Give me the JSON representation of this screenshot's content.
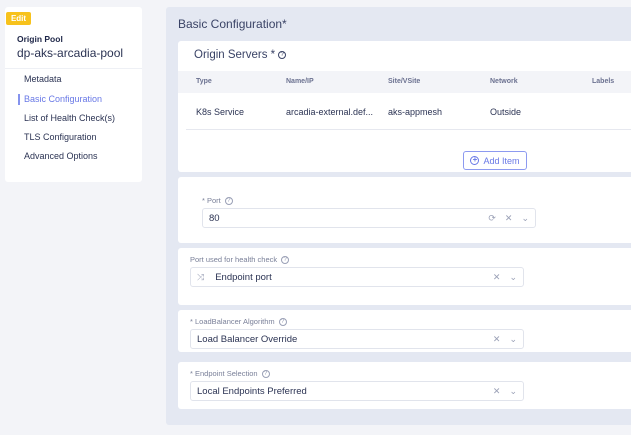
{
  "sidebar": {
    "badge": "Edit",
    "object_type": "Origin Pool",
    "object_name": "dp-aks-arcadia-pool",
    "items": [
      {
        "label": "Metadata"
      },
      {
        "label": "Basic Configuration",
        "active": true
      },
      {
        "label": "List of Health Check(s)"
      },
      {
        "label": "TLS Configuration"
      },
      {
        "label": "Advanced Options"
      }
    ]
  },
  "main": {
    "title": "Basic Configuration*",
    "origin_servers": {
      "title": "Origin Servers *",
      "columns": [
        "Type",
        "Name/IP",
        "Site/VSite",
        "Network",
        "Labels"
      ],
      "rows": [
        [
          "K8s Service",
          "arcadia-external.def...",
          "aks-appmesh",
          "Outside",
          ""
        ]
      ],
      "add_label": "Add Item"
    },
    "port": {
      "label": "* Port",
      "value": "80"
    },
    "health_port": {
      "label": "Port used for health check",
      "value": "Endpoint port",
      "icon": "shuffle-icon"
    },
    "lb_algorithm": {
      "label": "* LoadBalancer Algorithm",
      "value": "Load Balancer Override"
    },
    "endpoint_selection": {
      "label": "* Endpoint Selection",
      "value": "Local Endpoints Preferred"
    }
  },
  "colors": {
    "accent": "#6878e6",
    "badge": "#f7c21c"
  }
}
